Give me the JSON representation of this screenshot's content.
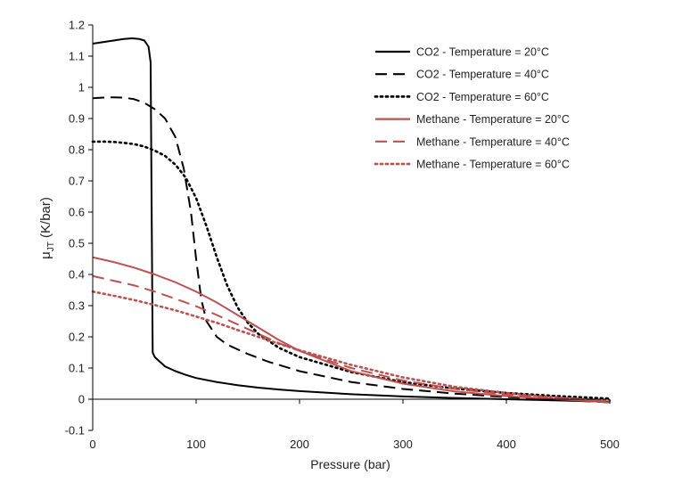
{
  "chart_data": {
    "type": "line",
    "xlabel": "Pressure (bar)",
    "ylabel_main": "μ",
    "ylabel_sub": "JT",
    "ylabel_unit": " (K/bar)",
    "xlim": [
      0,
      500
    ],
    "ylim": [
      -0.1,
      1.2
    ],
    "xticks": [
      0,
      100,
      200,
      300,
      400,
      500
    ],
    "yticks": [
      -0.1,
      0,
      0.1,
      0.2,
      0.3,
      0.4,
      0.5,
      0.6,
      0.7,
      0.8,
      0.9,
      1,
      1.1,
      1.2
    ],
    "grid": false,
    "legend_position": "top-right",
    "series": [
      {
        "name": "CO2 - Temperature = 20°C",
        "color": "#000000",
        "dash": "solid",
        "points": [
          [
            0,
            1.14
          ],
          [
            10,
            1.145
          ],
          [
            20,
            1.15
          ],
          [
            30,
            1.155
          ],
          [
            38,
            1.157
          ],
          [
            45,
            1.155
          ],
          [
            50,
            1.15
          ],
          [
            54,
            1.13
          ],
          [
            56,
            1.08
          ],
          [
            57,
            0.6
          ],
          [
            58,
            0.15
          ],
          [
            60,
            0.135
          ],
          [
            65,
            0.12
          ],
          [
            70,
            0.105
          ],
          [
            80,
            0.09
          ],
          [
            90,
            0.078
          ],
          [
            100,
            0.068
          ],
          [
            120,
            0.055
          ],
          [
            140,
            0.045
          ],
          [
            160,
            0.037
          ],
          [
            180,
            0.031
          ],
          [
            200,
            0.026
          ],
          [
            250,
            0.016
          ],
          [
            300,
            0.009
          ],
          [
            350,
            0.004
          ],
          [
            400,
            0.0
          ],
          [
            450,
            -0.004
          ],
          [
            500,
            -0.008
          ]
        ]
      },
      {
        "name": "CO2 - Temperature = 40°C",
        "color": "#000000",
        "dash": "long-dash",
        "points": [
          [
            0,
            0.965
          ],
          [
            10,
            0.967
          ],
          [
            20,
            0.968
          ],
          [
            30,
            0.967
          ],
          [
            40,
            0.962
          ],
          [
            50,
            0.95
          ],
          [
            60,
            0.93
          ],
          [
            70,
            0.9
          ],
          [
            80,
            0.84
          ],
          [
            88,
            0.74
          ],
          [
            95,
            0.6
          ],
          [
            100,
            0.45
          ],
          [
            105,
            0.32
          ],
          [
            110,
            0.25
          ],
          [
            120,
            0.2
          ],
          [
            130,
            0.175
          ],
          [
            140,
            0.16
          ],
          [
            150,
            0.145
          ],
          [
            170,
            0.12
          ],
          [
            200,
            0.09
          ],
          [
            250,
            0.055
          ],
          [
            300,
            0.033
          ],
          [
            350,
            0.018
          ],
          [
            400,
            0.007
          ],
          [
            450,
            -0.002
          ],
          [
            500,
            -0.01
          ]
        ]
      },
      {
        "name": "CO2 - Temperature = 60°C",
        "color": "#000000",
        "dash": "dotted",
        "points": [
          [
            0,
            0.826
          ],
          [
            10,
            0.826
          ],
          [
            20,
            0.825
          ],
          [
            30,
            0.822
          ],
          [
            40,
            0.818
          ],
          [
            50,
            0.81
          ],
          [
            60,
            0.797
          ],
          [
            70,
            0.78
          ],
          [
            80,
            0.752
          ],
          [
            90,
            0.71
          ],
          [
            100,
            0.645
          ],
          [
            110,
            0.555
          ],
          [
            120,
            0.455
          ],
          [
            130,
            0.365
          ],
          [
            140,
            0.295
          ],
          [
            150,
            0.245
          ],
          [
            160,
            0.21
          ],
          [
            180,
            0.165
          ],
          [
            200,
            0.135
          ],
          [
            250,
            0.087
          ],
          [
            300,
            0.055
          ],
          [
            350,
            0.034
          ],
          [
            400,
            0.02
          ],
          [
            450,
            0.01
          ],
          [
            500,
            0.002
          ]
        ]
      },
      {
        "name": "Methane - Temperature = 20°C",
        "color": "#c0504d",
        "dash": "solid",
        "points": [
          [
            0,
            0.455
          ],
          [
            20,
            0.44
          ],
          [
            40,
            0.422
          ],
          [
            60,
            0.4
          ],
          [
            80,
            0.375
          ],
          [
            100,
            0.345
          ],
          [
            120,
            0.31
          ],
          [
            140,
            0.27
          ],
          [
            160,
            0.23
          ],
          [
            180,
            0.19
          ],
          [
            200,
            0.155
          ],
          [
            250,
            0.09
          ],
          [
            300,
            0.05
          ],
          [
            350,
            0.025
          ],
          [
            400,
            0.01
          ],
          [
            450,
            0.0
          ],
          [
            500,
            -0.01
          ]
        ]
      },
      {
        "name": "Methane - Temperature = 40°C",
        "color": "#c0504d",
        "dash": "long-dash",
        "points": [
          [
            0,
            0.395
          ],
          [
            20,
            0.38
          ],
          [
            40,
            0.365
          ],
          [
            60,
            0.345
          ],
          [
            80,
            0.322
          ],
          [
            100,
            0.298
          ],
          [
            120,
            0.27
          ],
          [
            140,
            0.24
          ],
          [
            160,
            0.21
          ],
          [
            180,
            0.18
          ],
          [
            200,
            0.155
          ],
          [
            250,
            0.1
          ],
          [
            300,
            0.06
          ],
          [
            350,
            0.033
          ],
          [
            400,
            0.015
          ],
          [
            450,
            0.003
          ],
          [
            500,
            -0.008
          ]
        ]
      },
      {
        "name": "Methane - Temperature = 60°C",
        "color": "#c0504d",
        "dash": "dotted",
        "points": [
          [
            0,
            0.345
          ],
          [
            20,
            0.332
          ],
          [
            40,
            0.318
          ],
          [
            60,
            0.302
          ],
          [
            80,
            0.285
          ],
          [
            100,
            0.265
          ],
          [
            120,
            0.245
          ],
          [
            140,
            0.222
          ],
          [
            160,
            0.2
          ],
          [
            180,
            0.178
          ],
          [
            200,
            0.157
          ],
          [
            250,
            0.11
          ],
          [
            300,
            0.07
          ],
          [
            350,
            0.04
          ],
          [
            400,
            0.02
          ],
          [
            450,
            0.005
          ],
          [
            500,
            -0.005
          ]
        ]
      }
    ]
  }
}
